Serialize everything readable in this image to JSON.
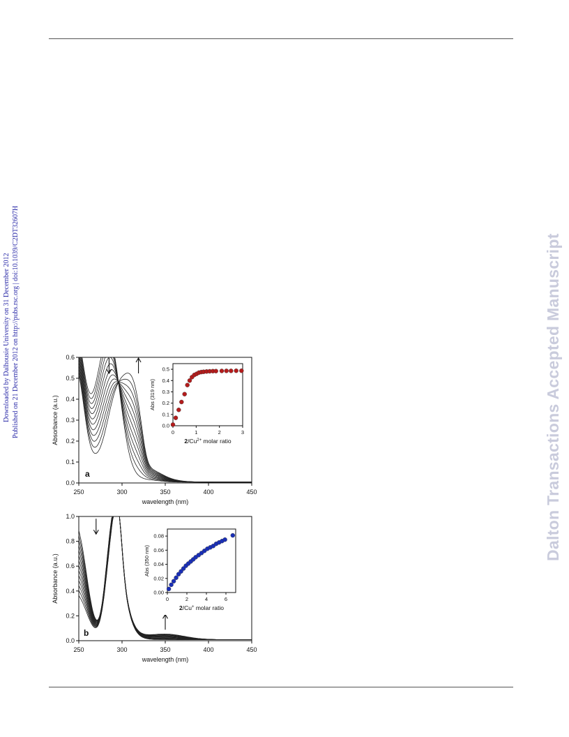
{
  "sidebar": {
    "downloaded": "Downloaded by Dalhousie University on 31 December 2012",
    "published": "Published on 21 December 2012 on http://pubs.rsc.org | doi:10.1039/C2DT32607H"
  },
  "watermark": "Dalton Transactions Accepted Manuscript",
  "figure": {
    "panel_a_label": "a",
    "panel_b_label": "b"
  },
  "chart_data": [
    {
      "type": "line",
      "panel": "a",
      "xlabel": "wavelength (nm)",
      "ylabel": "Absorbance (a.u.)",
      "xlim": [
        250,
        450
      ],
      "ylim": [
        0,
        0.6
      ],
      "xticks": [
        "250",
        "300",
        "350",
        "400",
        "450"
      ],
      "yticks": [
        "0.0",
        "0.1",
        "0.2",
        "0.3",
        "0.4",
        "0.5",
        "0.6"
      ],
      "isosbestic_point": [
        266,
        0.26
      ],
      "annotations": [
        {
          "symbol": "down-arrow",
          "x": 285,
          "y": 0.56
        },
        {
          "symbol": "up-arrow",
          "x": 319,
          "y": 0.56
        }
      ],
      "series_note": "family of titration spectra; peak near 285 nm decreases, peak near 319 nm increases",
      "inset": {
        "type": "scatter",
        "xlabel": "2/Cu2+ molar ratio",
        "ylabel": "Abs (319 nm)",
        "xlim": [
          0,
          3
        ],
        "ylim": [
          0,
          0.55
        ],
        "xticks": [
          "0",
          "1",
          "2",
          "3"
        ],
        "yticks": [
          "0.0",
          "0.1",
          "0.2",
          "0.3",
          "0.4",
          "0.5"
        ],
        "color": "#b51c1c",
        "x": [
          0,
          0.12,
          0.25,
          0.37,
          0.5,
          0.62,
          0.72,
          0.82,
          0.92,
          1.02,
          1.12,
          1.22,
          1.32,
          1.45,
          1.58,
          1.72,
          1.85,
          2.1,
          2.3,
          2.5,
          2.72,
          2.95
        ],
        "y": [
          0.01,
          0.07,
          0.14,
          0.21,
          0.28,
          0.36,
          0.4,
          0.43,
          0.45,
          0.46,
          0.47,
          0.475,
          0.478,
          0.48,
          0.482,
          0.483,
          0.484,
          0.485,
          0.486,
          0.486,
          0.487,
          0.487
        ]
      }
    },
    {
      "type": "line",
      "panel": "b",
      "xlabel": "wavelength (nm)",
      "ylabel": "Absorbance (a.u.)",
      "xlim": [
        250,
        450
      ],
      "ylim": [
        0,
        1.0
      ],
      "xticks": [
        "250",
        "300",
        "350",
        "400",
        "450"
      ],
      "yticks": [
        "0.0",
        "0.2",
        "0.4",
        "0.6",
        "0.8",
        "1.0"
      ],
      "annotations": [
        {
          "symbol": "down-arrow",
          "x": 270,
          "y": 0.92
        },
        {
          "symbol": "up-arrow",
          "x": 350,
          "y": 0.15
        }
      ],
      "series_note": "family of titration spectra; absorbance below ~275 nm decreases, band near 350 nm increases",
      "inset": {
        "type": "scatter",
        "xlabel": "2/Cu+ molar ratio",
        "ylabel": "Abs (350 nm)",
        "xlim": [
          0,
          7
        ],
        "ylim": [
          0,
          0.09
        ],
        "xticks": [
          "0",
          "2",
          "4",
          "6"
        ],
        "yticks": [
          "0.00",
          "0.02",
          "0.04",
          "0.06",
          "0.08"
        ],
        "color": "#1a2fb8",
        "x": [
          0.15,
          0.4,
          0.65,
          0.9,
          1.15,
          1.4,
          1.65,
          1.9,
          2.15,
          2.4,
          2.65,
          2.9,
          3.2,
          3.5,
          3.8,
          4.1,
          4.4,
          4.7,
          5.0,
          5.3,
          5.6,
          5.9,
          6.7
        ],
        "y": [
          0.005,
          0.011,
          0.016,
          0.021,
          0.026,
          0.03,
          0.034,
          0.038,
          0.041,
          0.044,
          0.047,
          0.05,
          0.053,
          0.056,
          0.059,
          0.062,
          0.064,
          0.066,
          0.069,
          0.071,
          0.073,
          0.075,
          0.081
        ]
      }
    }
  ]
}
